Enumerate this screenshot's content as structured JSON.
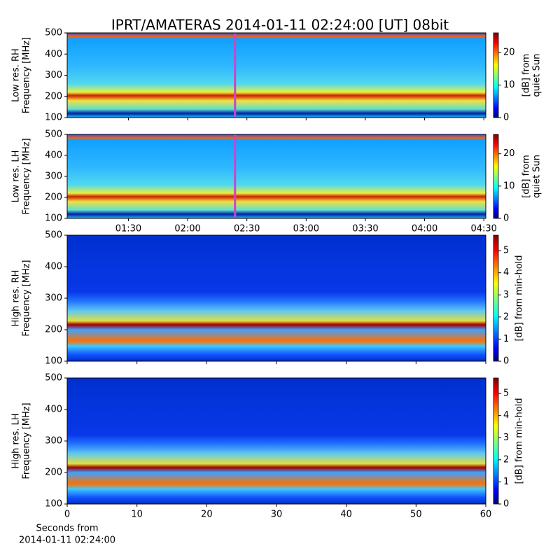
{
  "chart_data": [
    {
      "type": "heatmap",
      "title": "IPRT/AMATERAS 2014-01-11 02:24:00 [UT]   08bit",
      "ylabel": [
        "Low res. RH",
        "Frequency [MHz]"
      ],
      "ylim": [
        100,
        500
      ],
      "yticks": [
        100,
        200,
        300,
        400,
        500
      ],
      "xlim": [
        "00:59",
        "04:31"
      ],
      "xticks": [
        "01:30",
        "02:00",
        "02:30",
        "03:00",
        "03:30",
        "04:00",
        "04:30"
      ],
      "show_xticklabels": false,
      "marker": "02:24",
      "marker_color": "#cc44cc",
      "colorbar_label": [
        "[dB] from",
        "quiet Sun"
      ],
      "clim": [
        0,
        26
      ],
      "cticks": [
        0,
        10,
        20
      ]
    },
    {
      "type": "heatmap",
      "ylabel": [
        "Low res. LH",
        "Frequency [MHz]"
      ],
      "ylim": [
        100,
        500
      ],
      "yticks": [
        100,
        200,
        300,
        400,
        500
      ],
      "xlim": [
        "00:59",
        "04:31"
      ],
      "xticks": [
        "01:30",
        "02:00",
        "02:30",
        "03:00",
        "03:30",
        "04:00",
        "04:30"
      ],
      "show_xticklabels": true,
      "marker": "02:24",
      "marker_color": "#cc44cc",
      "colorbar_label": [
        "[dB] from",
        "quiet Sun"
      ],
      "clim": [
        0,
        26
      ],
      "cticks": [
        0,
        10,
        20
      ]
    },
    {
      "type": "heatmap",
      "ylabel": [
        "High res. RH",
        "Frequency [MHz]"
      ],
      "ylim": [
        100,
        500
      ],
      "yticks": [
        100,
        200,
        300,
        400,
        500
      ],
      "xlim": [
        0,
        60
      ],
      "xticks": [
        0,
        10,
        20,
        30,
        40,
        50,
        60
      ],
      "show_xticklabels": false,
      "colorbar_label": [
        "[dB] from min-hold"
      ],
      "clim": [
        0,
        5.7
      ],
      "cticks": [
        0,
        1,
        2,
        3,
        4,
        5
      ]
    },
    {
      "type": "heatmap",
      "ylabel": [
        "High res. LH",
        "Frequency [MHz]"
      ],
      "ylim": [
        100,
        500
      ],
      "yticks": [
        100,
        200,
        300,
        400,
        500
      ],
      "xlim": [
        0,
        60
      ],
      "xticks": [
        0,
        10,
        20,
        30,
        40,
        50,
        60
      ],
      "show_xticklabels": true,
      "xlabel": [
        "Seconds from",
        "2014-01-11 02:24:00"
      ],
      "colorbar_label": [
        "[dB] from min-hold"
      ],
      "clim": [
        0,
        5.7
      ],
      "cticks": [
        0,
        1,
        2,
        3,
        4,
        5
      ]
    }
  ]
}
